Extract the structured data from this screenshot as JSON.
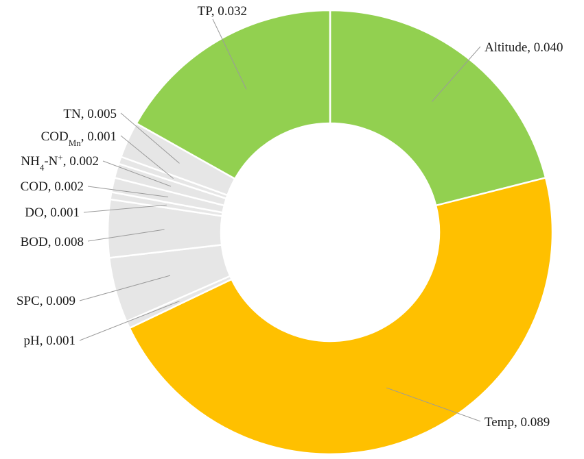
{
  "chart_data": {
    "type": "pie",
    "style": "donut",
    "title": "",
    "slices": [
      {
        "label": "Altitude",
        "value": 0.04,
        "display": "Altitude, 0.040",
        "color": "#92d050"
      },
      {
        "label": "Temp",
        "value": 0.089,
        "display": "Temp, 0.089",
        "color": "#ffc000"
      },
      {
        "label": "pH",
        "value": 0.001,
        "display": "pH, 0.001",
        "color": "#e6e6e6"
      },
      {
        "label": "SPC",
        "value": 0.009,
        "display": "SPC, 0.009",
        "color": "#e6e6e6"
      },
      {
        "label": "BOD",
        "value": 0.008,
        "display": "BOD, 0.008",
        "color": "#e6e6e6"
      },
      {
        "label": "DO",
        "value": 0.001,
        "display": "DO, 0.001",
        "color": "#e6e6e6"
      },
      {
        "label": "COD",
        "value": 0.002,
        "display": "COD, 0.002",
        "color": "#e6e6e6"
      },
      {
        "label": "NH4-N+",
        "value": 0.002,
        "display": "NH4-N+, 0.002",
        "color": "#e6e6e6"
      },
      {
        "label": "CODMn",
        "value": 0.001,
        "display": "CODMn, 0.001",
        "color": "#e6e6e6"
      },
      {
        "label": "TN",
        "value": 0.005,
        "display": "TN, 0.005",
        "color": "#e6e6e6"
      },
      {
        "label": "TP",
        "value": 0.032,
        "display": "TP, 0.032",
        "color": "#92d050"
      }
    ]
  }
}
